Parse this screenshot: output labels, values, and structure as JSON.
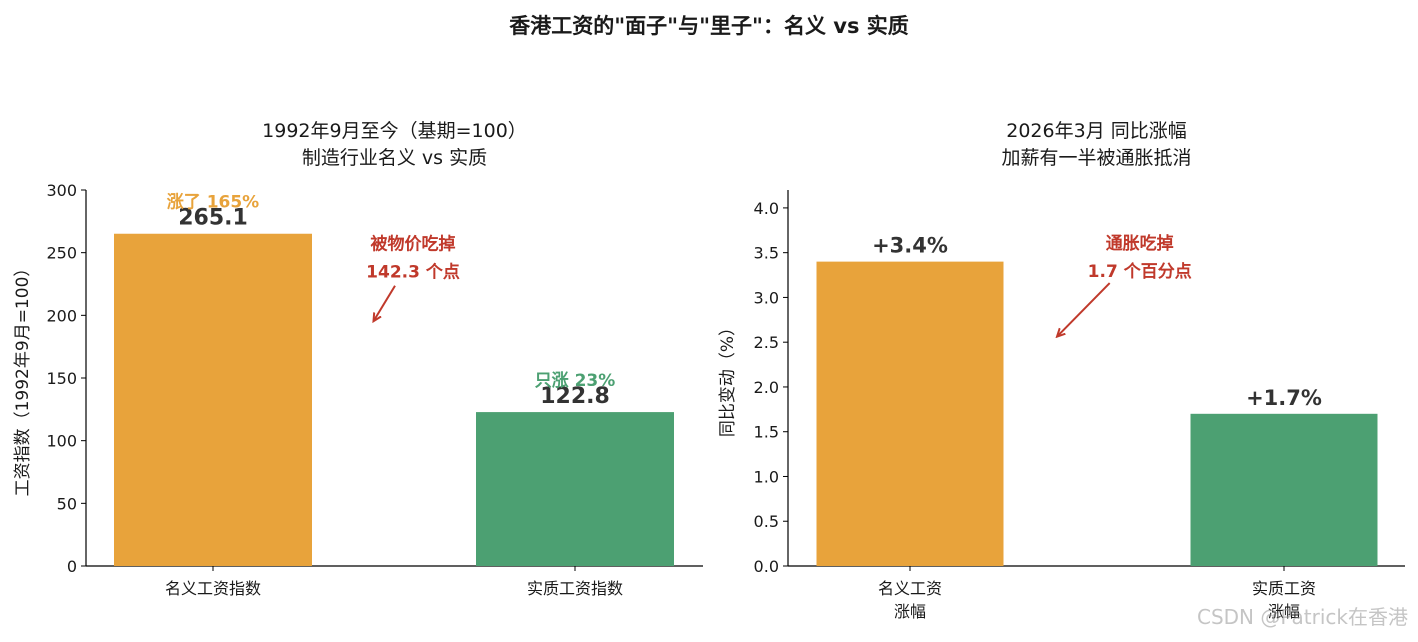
{
  "page": {
    "suptitle": "香港工资的\"面子\"与\"里子\"：名义 vs 实质",
    "watermark": "CSDN @Patrick在香港"
  },
  "colors": {
    "nominal": "#E8A33B",
    "real": "#4CA072",
    "annotation": "#C0392B",
    "axis": "#000000",
    "value_text": "#333333"
  },
  "chart_data": [
    {
      "type": "bar",
      "title": "1992年9月至今（基期=100）\n制造行业名义 vs 实质",
      "categories": [
        "名义工资指数",
        "实质工资指数"
      ],
      "values": [
        265.1,
        122.8
      ],
      "value_labels": [
        "265.1",
        "122.8"
      ],
      "growth_labels": [
        "涨了 165%",
        "只涨 23%"
      ],
      "ylabel": "工资指数（1992年9月=100）",
      "ylim": [
        0,
        300
      ],
      "yticks": [
        0,
        50,
        100,
        150,
        200,
        250,
        300
      ],
      "ytick_labels": [
        "0",
        "50",
        "100",
        "150",
        "200",
        "250",
        "300"
      ],
      "annotation": {
        "text": "被物价吃掉\n142.3 个点",
        "x": 0.5,
        "y": 238,
        "arrow_to": [
          0.5,
          196
        ]
      },
      "grid": false,
      "legend": "none"
    },
    {
      "type": "bar",
      "title": "2026年3月 同比涨幅\n加薪有一半被通胀抵消",
      "categories": [
        "名义工资\n涨幅",
        "实质工资\n涨幅"
      ],
      "values": [
        3.4,
        1.7
      ],
      "value_labels": [
        "+3.4%",
        "+1.7%"
      ],
      "ylabel": "同比变动（%）",
      "ylim": [
        0,
        4.2
      ],
      "yticks": [
        0,
        0.5,
        1.0,
        1.5,
        2.0,
        2.5,
        3.0,
        3.5,
        4.0
      ],
      "ytick_labels": [
        "0.0",
        "0.5",
        "1.0",
        "1.5",
        "2.0",
        "2.5",
        "3.0",
        "3.5",
        "4.0"
      ],
      "annotation": {
        "text": "通胀吃掉\n1.7 个百分点",
        "x": 0.5,
        "y": 3.25,
        "arrow_to": [
          0.5,
          2.57
        ]
      },
      "grid": false,
      "legend": "none"
    }
  ]
}
